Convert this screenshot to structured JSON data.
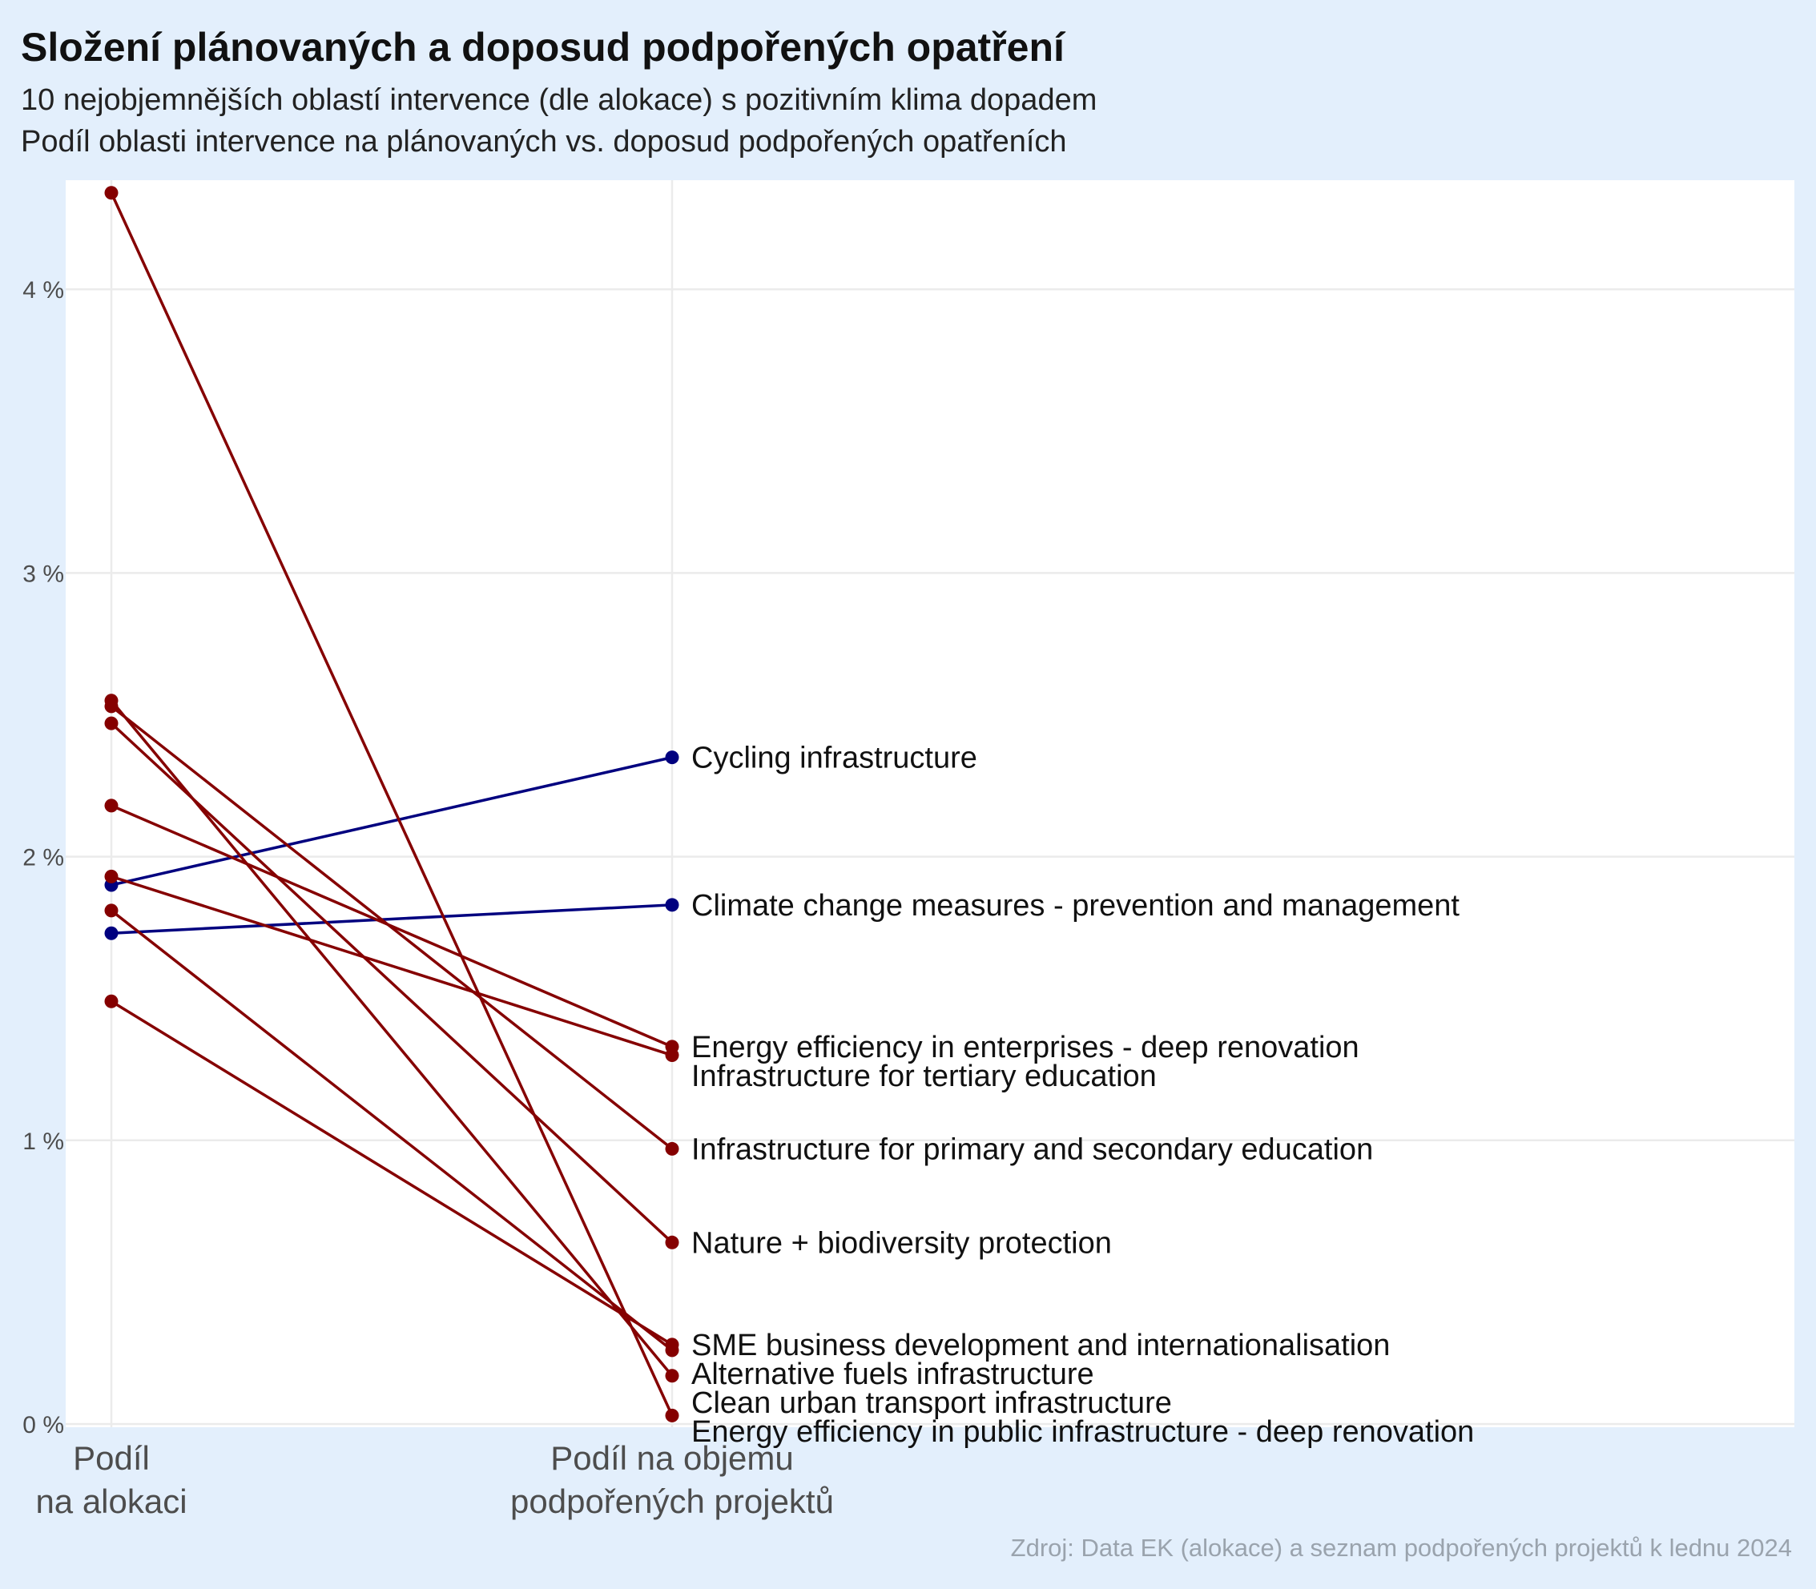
{
  "title": "Složení plánovaných a doposud podpořených opatření",
  "subtitle_line1": "10 nejobjemnějších oblastí intervence (dle alokace) s pozitivním klima dopadem",
  "subtitle_line2": "Podíl oblasti intervence na plánovaných vs. doposud podpořených opatřeních",
  "caption": "Zdroj: Data EK (alokace) a seznam podpořených projektů k lednu 2024",
  "colors": {
    "increase": "#00007f",
    "decrease": "#850000",
    "panel": "#ffffff",
    "grid": "#ebebeb",
    "background": "#e3effc"
  },
  "chart_data": {
    "type": "line",
    "categories": [
      "Podíl\nna alokaci",
      "Podíl na objemu\npodpořených projektů"
    ],
    "ylim": [
      0,
      4.4
    ],
    "y_ticks": [
      0,
      1,
      2,
      3,
      4
    ],
    "y_tick_labels": [
      "0 %",
      "1 %",
      "2 %",
      "3 %",
      "4 %"
    ],
    "grid": true,
    "series": [
      {
        "name": "Cycling infrastructure",
        "values": [
          1.9,
          2.35
        ],
        "trend": "increase"
      },
      {
        "name": "Climate change measures - prevention and management",
        "values": [
          1.73,
          1.83
        ],
        "trend": "increase"
      },
      {
        "name": "Energy efficiency in enterprises - deep renovation",
        "values": [
          2.18,
          1.33
        ],
        "trend": "decrease"
      },
      {
        "name": "Infrastructure for tertiary education",
        "values": [
          1.93,
          1.3
        ],
        "trend": "decrease"
      },
      {
        "name": "Infrastructure for primary and secondary education",
        "values": [
          2.53,
          0.97
        ],
        "trend": "decrease"
      },
      {
        "name": "Nature + biodiversity protection",
        "values": [
          2.47,
          0.64
        ],
        "trend": "decrease"
      },
      {
        "name": "SME business development and internationalisation",
        "values": [
          1.49,
          0.28
        ],
        "trend": "decrease"
      },
      {
        "name": "Alternative fuels infrastructure",
        "values": [
          1.81,
          0.26
        ],
        "trend": "decrease"
      },
      {
        "name": "Clean urban transport infrastructure",
        "values": [
          2.55,
          0.17
        ],
        "trend": "decrease"
      },
      {
        "name": "Energy efficiency in public infrastructure - deep renovation",
        "values": [
          4.34,
          0.03
        ],
        "trend": "decrease"
      }
    ]
  }
}
